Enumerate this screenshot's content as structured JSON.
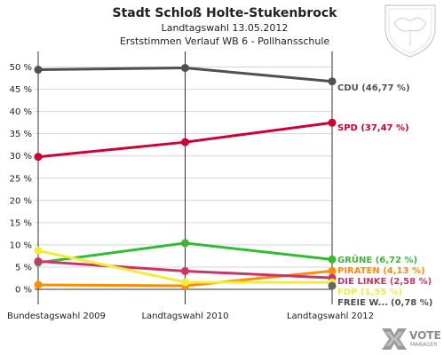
{
  "title": "Stadt Schloß Holte-Stukenbrock",
  "subtitle1": "Landtagswahl 13.05.2012",
  "subtitle2": "Erststimmen Verlauf WB 6 - Pollhansschule",
  "logo": {
    "line1": "VOTE",
    "line2": "MANAGER",
    "icon": "vote-x-icon"
  },
  "crest": {
    "icon": "coat-of-arms-icon"
  },
  "chart_data": {
    "type": "line",
    "categories": [
      "Bundestagswahl 2009",
      "Landtagswahl 2010",
      "Landtagswahl 2012"
    ],
    "ylim": [
      0,
      52.5
    ],
    "yticks": [
      "0 %",
      "5 %",
      "10 %",
      "15 %",
      "20 %",
      "25 %",
      "30 %",
      "35 %",
      "40 %",
      "45 %",
      "50 %"
    ],
    "grid": true,
    "series": [
      {
        "name": "CDU",
        "label": "CDU (46,77 %)",
        "color": "#505050",
        "values": [
          49.4,
          49.8,
          46.77
        ]
      },
      {
        "name": "SPD",
        "label": "SPD (37,47 %)",
        "color": "#cc0033",
        "values": [
          29.8,
          33.1,
          37.47
        ]
      },
      {
        "name": "GRÜNE",
        "label": "GRÜNE (6,72 %)",
        "color": "#33bb33",
        "values": [
          6.0,
          10.4,
          6.72
        ]
      },
      {
        "name": "PIRATEN",
        "label": "PIRATEN (4,13 %)",
        "color": "#ff8c00",
        "values": [
          1.0,
          0.8,
          4.13
        ]
      },
      {
        "name": "DIE LINKE",
        "label": "DIE LINKE (2,58 %)",
        "color": "#cc3366",
        "values": [
          6.3,
          4.1,
          2.58
        ]
      },
      {
        "name": "FDP",
        "label": "FDP (1,55 %)",
        "color": "#f2ec3c",
        "values": [
          8.7,
          1.6,
          1.55
        ]
      },
      {
        "name": "FREIE W...",
        "label": "FREIE W...",
        "value_label": "(0,78 %)",
        "color": "#666666",
        "values": [
          null,
          null,
          0.78
        ]
      }
    ]
  }
}
